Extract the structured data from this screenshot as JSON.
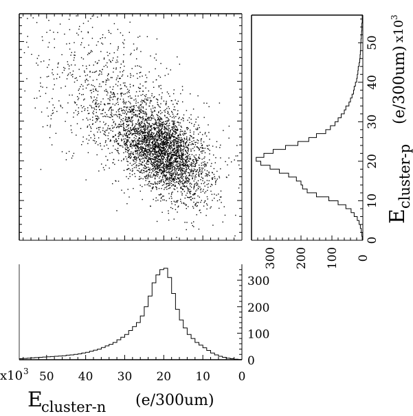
{
  "chart_data": [
    {
      "type": "scatter",
      "description_panel": "main",
      "x_axis": {
        "reversed": true,
        "lim": [
          0,
          57
        ]
      },
      "y_axis": {
        "lim": [
          0,
          57
        ]
      },
      "clusters": [
        {
          "cx": 20,
          "cy": 22,
          "sx": 5.5,
          "sy": 5.5,
          "corr": 0.45,
          "n": 2600
        },
        {
          "cx": 26,
          "cy": 28,
          "sx": 10,
          "sy": 9,
          "corr": 0.55,
          "n": 900
        },
        {
          "cx": 38,
          "cy": 40,
          "sx": 10,
          "sy": 9,
          "corr": 0.3,
          "n": 420
        }
      ],
      "grid": false
    },
    {
      "type": "bar",
      "description_panel": "right projection (horizontal histogram)",
      "ylabel_main": "E",
      "ylabel_sub": "cluster-p",
      "ylabel_unit": "(e/300um)",
      "y_exponent": "x10",
      "y_exponent_power": "3",
      "y_ticks": [
        "0",
        "10",
        "20",
        "30",
        "40",
        "50"
      ],
      "y_tick_values": [
        0,
        10,
        20,
        30,
        40,
        50
      ],
      "x_ticks": [
        "300",
        "200",
        "100",
        "0"
      ],
      "x_tick_values": [
        300,
        200,
        100,
        0
      ],
      "count_lim": [
        0,
        360
      ],
      "e_lim": [
        0,
        57
      ],
      "bins": [
        0,
        1,
        2,
        3,
        4,
        5,
        6,
        7,
        8,
        9,
        10,
        11,
        12,
        13,
        14,
        15,
        16,
        17,
        18,
        19,
        20,
        21,
        22,
        23,
        24,
        25,
        26,
        27,
        28,
        29,
        30,
        31,
        32,
        33,
        34,
        35,
        36,
        37,
        38,
        39,
        40,
        41,
        42,
        43,
        44,
        45,
        46,
        47,
        48,
        49,
        50,
        51,
        52,
        53,
        54,
        55,
        56
      ],
      "counts": [
        2,
        3,
        5,
        8,
        12,
        18,
        28,
        38,
        55,
        80,
        110,
        150,
        180,
        195,
        200,
        215,
        240,
        270,
        300,
        330,
        345,
        320,
        290,
        250,
        210,
        175,
        150,
        120,
        105,
        90,
        80,
        70,
        60,
        55,
        45,
        40,
        35,
        30,
        28,
        24,
        20,
        18,
        16,
        15,
        12,
        10,
        9,
        8,
        7,
        7,
        6,
        5,
        4,
        3,
        3,
        2,
        2
      ]
    },
    {
      "type": "bar",
      "description_panel": "bottom projection (vertical histogram)",
      "xlabel_main": "E",
      "xlabel_sub": "cluster-n",
      "xlabel_unit": "(e/300um)",
      "x_exponent": "x10",
      "x_exponent_power": "3",
      "x_ticks": [
        "50",
        "40",
        "30",
        "20",
        "10",
        "0"
      ],
      "x_tick_values": [
        50,
        40,
        30,
        20,
        10,
        0
      ],
      "y_ticks": [
        "0",
        "100",
        "200",
        "300"
      ],
      "y_tick_values": [
        0,
        100,
        200,
        300
      ],
      "count_lim": [
        0,
        360
      ],
      "e_lim": [
        0,
        57
      ],
      "bins": [
        0,
        1,
        2,
        3,
        4,
        5,
        6,
        7,
        8,
        9,
        10,
        11,
        12,
        13,
        14,
        15,
        16,
        17,
        18,
        19,
        20,
        21,
        22,
        23,
        24,
        25,
        26,
        27,
        28,
        29,
        30,
        31,
        32,
        33,
        34,
        35,
        36,
        37,
        38,
        39,
        40,
        41,
        42,
        43,
        44,
        45,
        46,
        47,
        48,
        49,
        50,
        51,
        52,
        53,
        54,
        55,
        56
      ],
      "counts": [
        1,
        2,
        4,
        6,
        9,
        13,
        18,
        25,
        35,
        45,
        55,
        65,
        80,
        95,
        120,
        150,
        190,
        250,
        310,
        345,
        340,
        320,
        290,
        240,
        200,
        165,
        140,
        125,
        110,
        95,
        85,
        75,
        65,
        58,
        52,
        46,
        40,
        36,
        32,
        28,
        25,
        22,
        20,
        18,
        17,
        15,
        14,
        13,
        12,
        11,
        10,
        9,
        8,
        7,
        6,
        5,
        4
      ]
    }
  ]
}
